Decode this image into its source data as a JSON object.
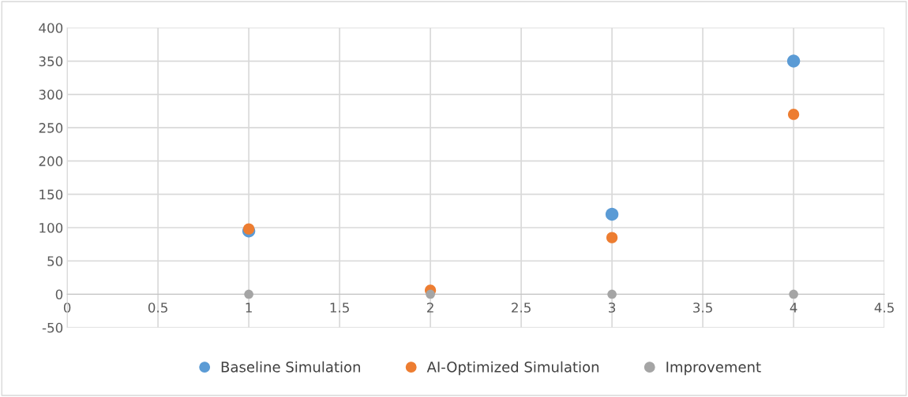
{
  "chart_data": {
    "type": "scatter",
    "x": [
      1,
      2,
      3,
      4
    ],
    "series": [
      {
        "name": "Baseline Simulation",
        "color": "#5b9bd5",
        "values": [
          95,
          null,
          120,
          350
        ]
      },
      {
        "name": "AI-Optimized Simulation",
        "color": "#ed7d31",
        "values": [
          98,
          6,
          85,
          270
        ]
      },
      {
        "name": "Improvement",
        "color": "#a5a5a5",
        "values": [
          0,
          0,
          0,
          0
        ]
      }
    ],
    "xlim": [
      0,
      4.5
    ],
    "xticks": [
      0,
      0.5,
      1,
      1.5,
      2,
      2.5,
      3,
      3.5,
      4,
      4.5
    ],
    "ylim": [
      -50,
      400
    ],
    "yticks": [
      -50,
      0,
      50,
      100,
      150,
      200,
      250,
      300,
      350,
      400
    ],
    "grid": true,
    "legend": "bottom",
    "marker": "circle"
  }
}
